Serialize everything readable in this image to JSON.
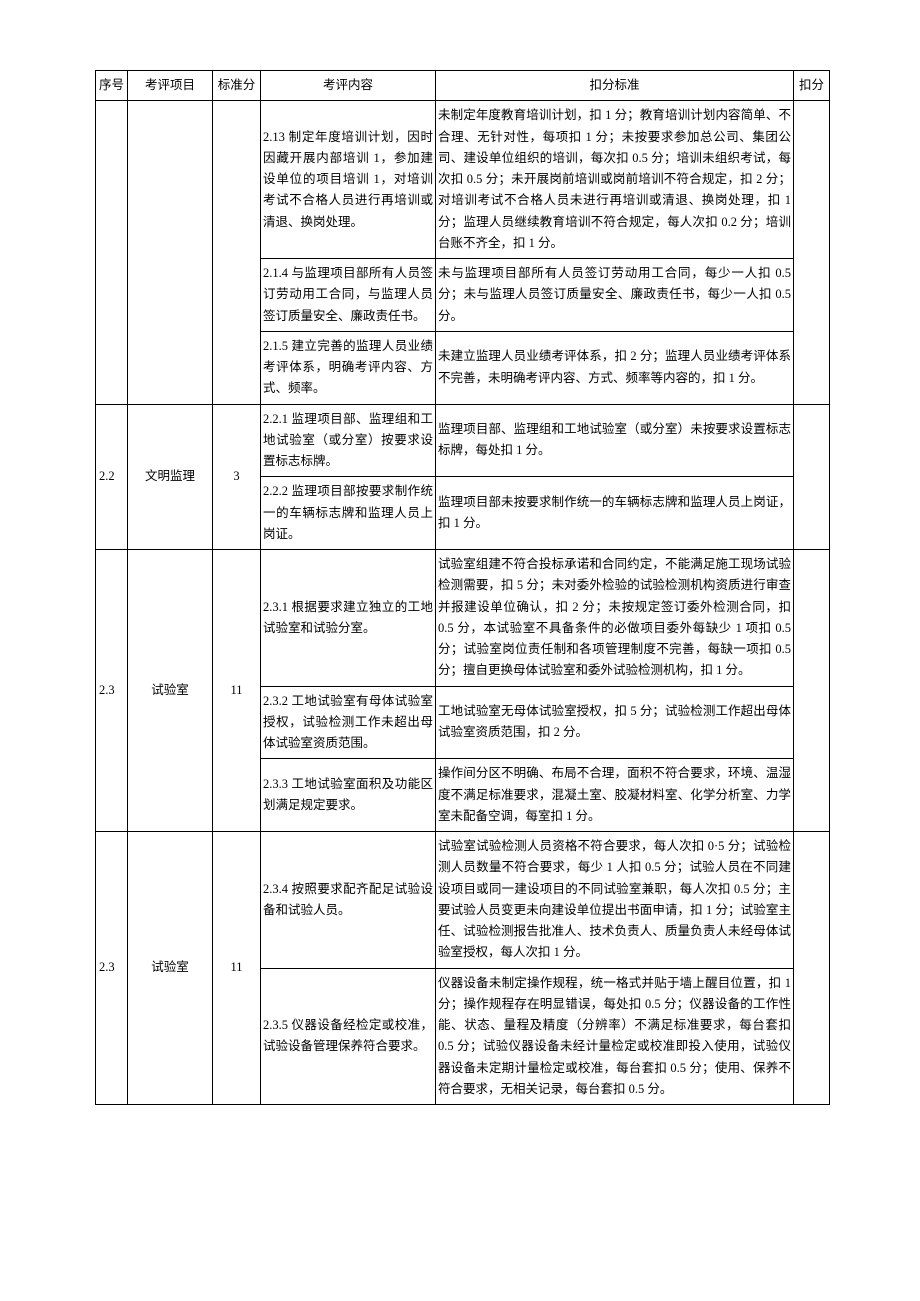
{
  "headers": {
    "seq": "序号",
    "item": "考评项目",
    "score": "标准分",
    "content": "考评内容",
    "criteria": "扣分标准",
    "deduct": "扣分"
  },
  "rows": [
    {
      "content": "2.13 制定年度培训计划，因时因藏开展内部培训 1，参加建设单位的项目培训 1，对培训考试不合格人员进行再培训或清退、换岗处理。",
      "criteria": "未制定年度教育培训计划，扣 1 分；教育培训计划内容简单、不合理、无针对性，每项扣 1 分；未按要求参加总公司、集团公司、建设单位组织的培训，每次扣 0.5 分；培训未组织考试，每次扣 0.5 分；未开展岗前培训或岗前培训不符合规定，扣 2 分；对培训考试不合格人员未进行再培训或清退、换岗处理，扣 1 分；监理人员继续教育培训不符合规定，每人次扣 0.2 分；培训台账不齐全，扣 1 分。"
    },
    {
      "content": "2.1.4 与监理项目部所有人员签订劳动用工合同，与监理人员签订质量安全、廉政责任书。",
      "criteria": "未与监理项目部所有人员签订劳动用工合同，每少一人扣 0.5 分；未与监理人员签订质量安全、廉政责任书，每少一人扣 0.5 分。"
    },
    {
      "content": "2.1.5 建立完善的监理人员业绩考评体系，明确考评内容、方式、频率。",
      "criteria": "未建立监理人员业绩考评体系，扣 2 分；监理人员业绩考评体系不完善，未明确考评内容、方式、频率等内容的，扣 1 分。"
    },
    {
      "seq": "2.2",
      "item": "文明监理",
      "score": "3",
      "content": "2.2.1 监理项目部、监理组和工地试验室（或分室）按要求设置标志标牌。",
      "criteria": "监理项目部、监理组和工地试验室（或分室）未按要求设置标志标牌，每处扣 1 分。"
    },
    {
      "content": "2.2.2 监理项目部按要求制作统一的车辆标志牌和监理人员上岗证。",
      "criteria": "监理项目部未按要求制作统一的车辆标志牌和监理人员上岗证，扣 1 分。"
    },
    {
      "seq": "2.3",
      "item": "试验室",
      "score": "11",
      "content": "2.3.1 根据要求建立独立的工地试验室和试验分室。",
      "criteria": "试验室组建不符合投标承诺和合同约定，不能满足施工现场试验检测需要，扣 5 分；未对委外检验的试验检测机构资质进行审查并报建设单位确认，扣 2 分；未按规定签订委外检测合同，扣 0.5 分，本试验室不具备条件的必做项目委外每缺少 1 项扣 0.5 分；试验室岗位责任制和各项管理制度不完善，每缺一项扣 0.5 分；擅自更换母体试验室和委外试验检测机构，扣 1 分。"
    },
    {
      "content": "2.3.2 工地试验室有母体试验室授权，试验检测工作未超出母体试验室资质范围。",
      "criteria": "工地试验室无母体试验室授权，扣 5 分；试验检测工作超出母体试验室资质范围，扣 2 分。"
    },
    {
      "content": "2.3.3 工地试验室面积及功能区划满足规定要求。",
      "criteria": "操作间分区不明确、布局不合理，面积不符合要求，环境、温湿度不满足标准要求，混凝土室、胶凝材料室、化学分析室、力学室未配备空调，每室扣 1 分。"
    },
    {
      "seq": "2.3",
      "item": "试验室",
      "score": "11",
      "content": "2.3.4 按照要求配齐配足试验设备和试验人员。",
      "criteria": "试验室试验检测人员资格不符合要求，每人次扣 0·5 分；试验检测人员数量不符合要求，每少 1 人扣 0.5 分；试验人员在不同建设项目或同一建设项目的不同试验室兼职，每人次扣 0.5 分；主要试验人员变更未向建设单位提出书面申请，扣 1 分；试验室主任、试验检测报告批准人、技术负责人、质量负责人未经母体试验室授权，每人次扣 1 分。"
    },
    {
      "content": "2.3.5 仪器设备经检定或校准，试验设备管理保养符合要求。",
      "criteria": "仪器设备未制定操作规程，统一格式并贴于墙上醒目位置，扣 1 分；操作规程存在明显错误，每处扣 0.5 分；仪器设备的工作性能、状态、量程及精度（分辨率）不满足标准要求，每台套扣 0.5 分；试验仪器设备未经计量检定或校准即投入使用，试验仪器设备未定期计量检定或校准，每台套扣 0.5 分；使用、保养不符合要求，无相关记录，每台套扣 0.5 分。"
    }
  ]
}
